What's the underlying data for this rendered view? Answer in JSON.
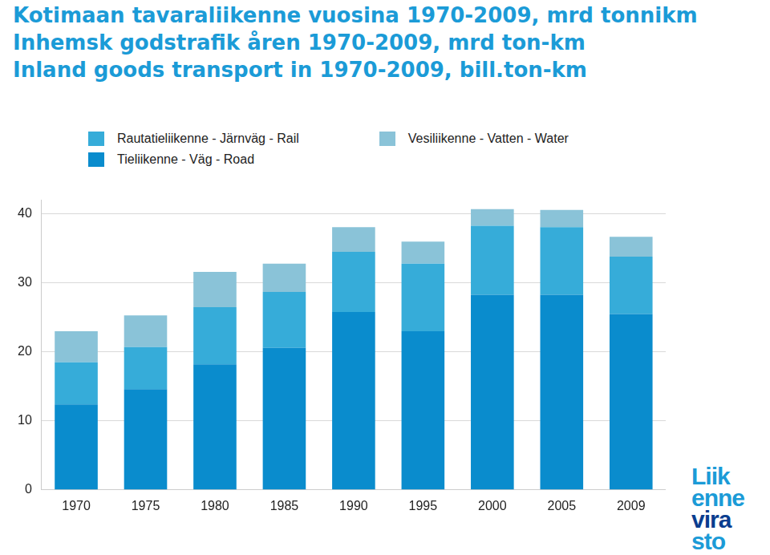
{
  "chart_data": {
    "type": "bar",
    "title": [
      "Kotimaan tavaraliikenne vuosina 1970-2009, mrd tonnikm",
      "Inhemsk godstrafik åren 1970-2009, mrd ton-km",
      "Inland goods transport in 1970-2009, bill.ton-km"
    ],
    "categories": [
      "1970",
      "1975",
      "1980",
      "1985",
      "1990",
      "1995",
      "2000",
      "2005",
      "2009"
    ],
    "series": [
      {
        "name": "Tieliikenne - Väg - Road",
        "color": "#0a8ccd",
        "values": [
          12.4,
          14.6,
          18.2,
          20.6,
          25.8,
          23.0,
          28.3,
          28.3,
          25.5
        ]
      },
      {
        "name": "Rautatieliikenne - Järnväg - Rail",
        "color": "#36acd9",
        "values": [
          6.1,
          6.1,
          8.3,
          8.1,
          8.7,
          9.8,
          10.0,
          9.8,
          8.3
        ]
      },
      {
        "name": "Vesiliikenne - Vatten - Water",
        "color": "#8ac3d8",
        "values": [
          4.5,
          4.6,
          5.1,
          4.1,
          3.6,
          3.2,
          2.4,
          2.5,
          2.9
        ]
      }
    ],
    "stacked": true,
    "ylim": [
      0,
      42
    ],
    "yticks": [
      0,
      10,
      20,
      30,
      40
    ],
    "grid": true,
    "legend": "top",
    "logo": [
      "Liik",
      "enne",
      "vira",
      "sto"
    ]
  }
}
